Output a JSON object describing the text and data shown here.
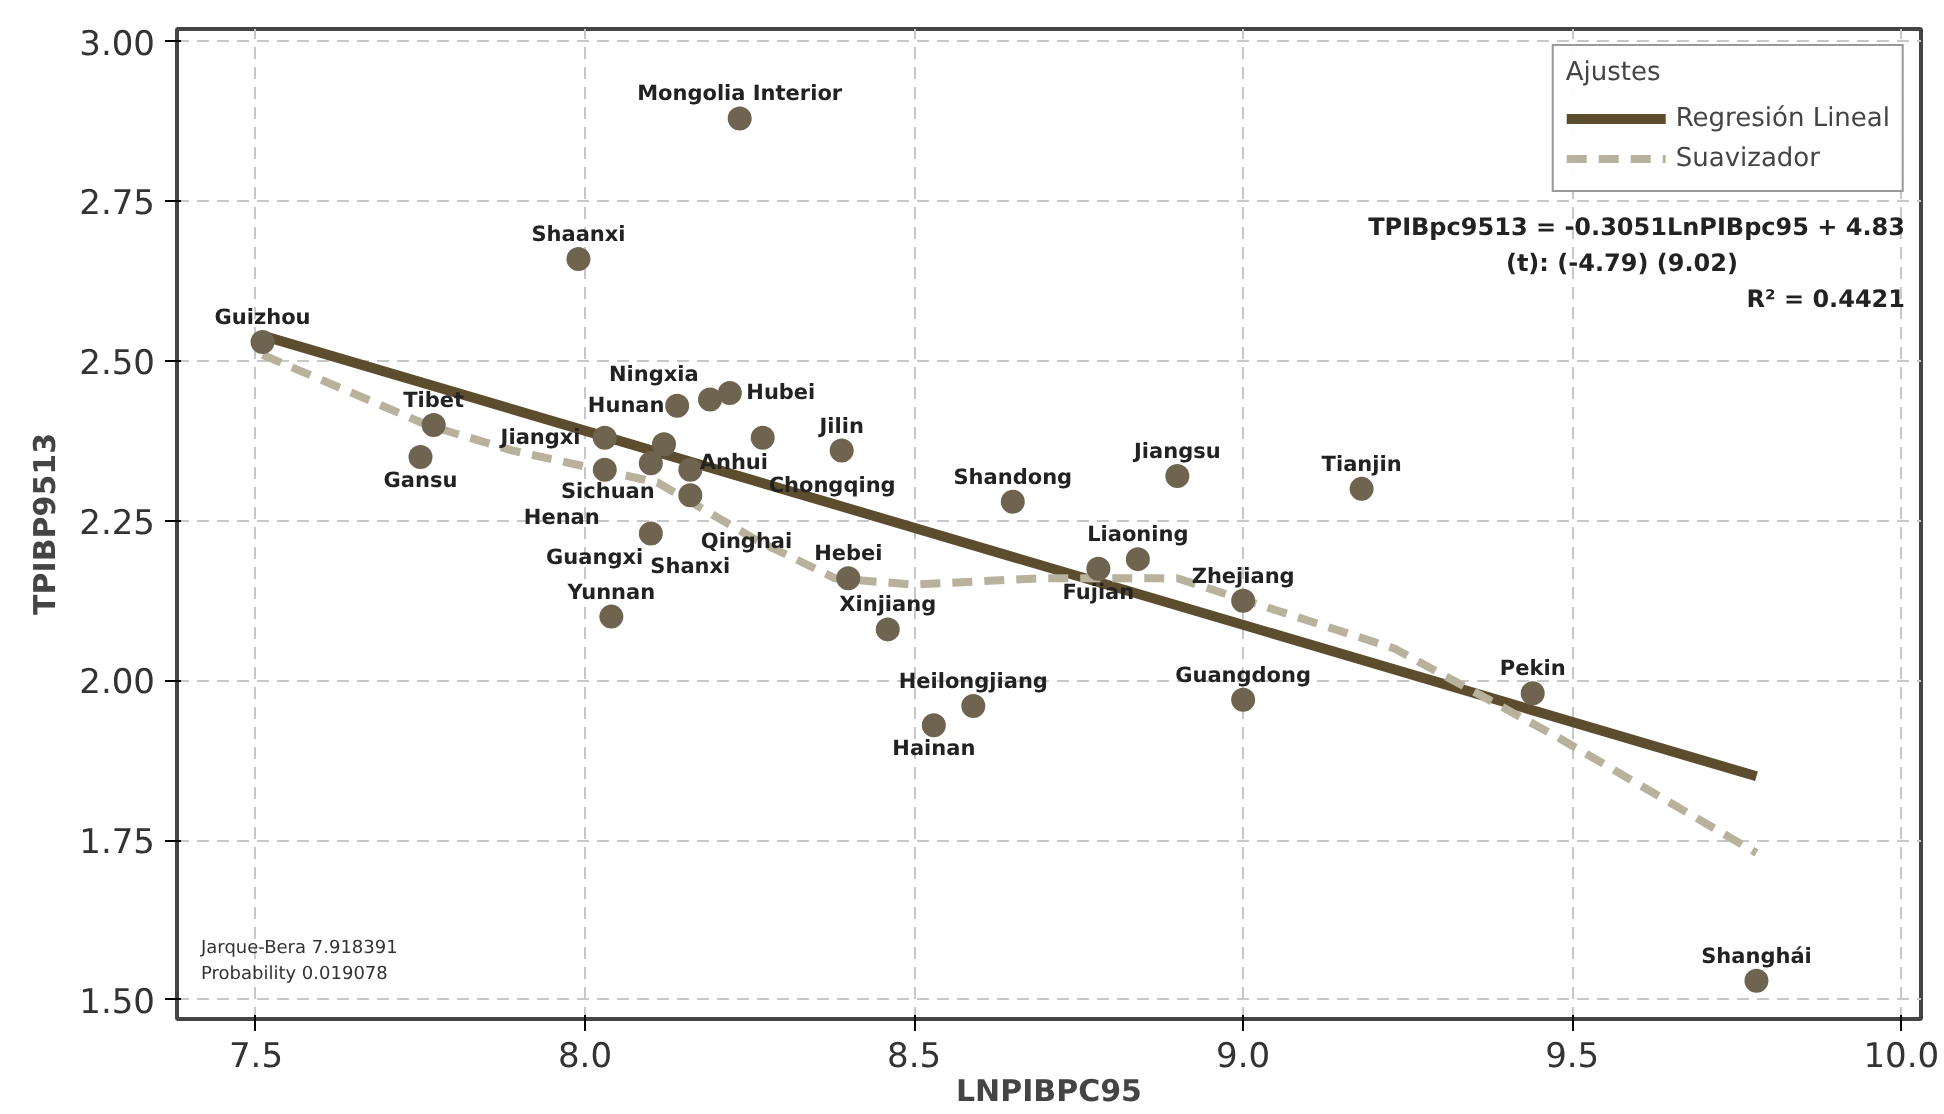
{
  "chart_data": {
    "type": "scatter",
    "xlabel": "LNPIBPC95",
    "ylabel": "TPIBP9513",
    "legend_title": "Ajustes",
    "legend": "top right",
    "grid": true,
    "xlim": [
      7.38,
      10.03
    ],
    "ylim": [
      1.47,
      3.02
    ],
    "xticks": [
      7.5,
      {
        "value": 8.0,
        "label": "8.0"
      },
      8.5,
      {
        "value": 9.0,
        "label": "9.0"
      },
      9.5,
      {
        "value": 10.0,
        "label": "10.0"
      }
    ],
    "yticks": [
      {
        "value": 1.5,
        "label": "1.50"
      },
      1.75,
      {
        "value": 2.0,
        "label": "2.00"
      },
      2.25,
      {
        "value": 2.5,
        "label": "2.50"
      },
      2.75,
      {
        "value": 3.0,
        "label": "3.00"
      }
    ],
    "series": [
      {
        "marker": "circle",
        "color": "#6e6450",
        "x": [
          7.51,
          7.77,
          7.75,
          7.99,
          8.235,
          8.19,
          8.22,
          8.14,
          8.03,
          8.12,
          8.1,
          8.03,
          8.16,
          8.27,
          8.39,
          8.16,
          8.1,
          8.04,
          8.4,
          8.46,
          8.53,
          8.59,
          8.65,
          8.9,
          9.18,
          8.84,
          8.78,
          9.0,
          9.0,
          9.44,
          9.78
        ],
        "values": [
          2.53,
          2.4,
          2.35,
          2.66,
          2.88,
          2.44,
          2.45,
          2.43,
          2.38,
          2.37,
          2.34,
          2.33,
          2.33,
          2.38,
          2.36,
          2.29,
          2.23,
          2.1,
          2.16,
          2.08,
          1.93,
          1.96,
          2.28,
          2.32,
          2.3,
          2.19,
          2.175,
          2.125,
          1.97,
          1.98,
          1.53
        ]
      },
      {
        "type": "line",
        "name": "Regresión Lineal",
        "color": "#5c4d2e",
        "line_style": "solid",
        "marker": "none",
        "x": [
          7.51,
          9.78
        ],
        "values": [
          2.54,
          1.85
        ]
      },
      {
        "type": "line",
        "name": "Suavizador",
        "color": "#b8b19c",
        "line_style": "dashed",
        "marker": "none",
        "x": [
          7.51,
          7.76,
          7.89,
          8.11,
          8.26,
          8.38,
          8.5,
          8.69,
          8.9,
          9.05,
          9.23,
          9.48,
          9.78
        ],
        "values": [
          2.51,
          2.4,
          2.36,
          2.31,
          2.22,
          2.16,
          2.15,
          2.16,
          2.16,
          2.11,
          2.05,
          1.91,
          1.73
        ]
      }
    ],
    "annotations": [
      {
        "text": "Guizhou",
        "x": 7.51,
        "y": 2.53
      },
      {
        "text": "Tibet",
        "x": 7.77,
        "y": 2.4
      },
      {
        "text": "Gansu",
        "x": 7.75,
        "y": 2.35
      },
      {
        "text": "Shaanxi",
        "x": 7.99,
        "y": 2.66
      },
      {
        "text": "Mongolia Interior",
        "x": 8.235,
        "y": 2.88
      },
      {
        "text": "Ningxia",
        "x": 8.19,
        "y": 2.44
      },
      {
        "text": "Hubei",
        "x": 8.22,
        "y": 2.45
      },
      {
        "text": "Hunan",
        "x": 8.14,
        "y": 2.43
      },
      {
        "text": "Jiangxi",
        "x": 8.03,
        "y": 2.38
      },
      {
        "text": "Sichuan",
        "x": 8.12,
        "y": 2.37
      },
      {
        "text": "Anhui",
        "x": 8.1,
        "y": 2.34
      },
      {
        "text": "Henan",
        "x": 8.03,
        "y": 2.33
      },
      {
        "text": "Qinghai",
        "x": 8.16,
        "y": 2.33
      },
      {
        "text": "Chongqing",
        "x": 8.27,
        "y": 2.38
      },
      {
        "text": "Jilin",
        "x": 8.39,
        "y": 2.36
      },
      {
        "text": "Shanxi",
        "x": 8.16,
        "y": 2.29
      },
      {
        "text": "Guangxi",
        "x": 8.1,
        "y": 2.23
      },
      {
        "text": "Yunnan",
        "x": 8.04,
        "y": 2.1
      },
      {
        "text": "Hebei",
        "x": 8.4,
        "y": 2.16
      },
      {
        "text": "Xinjiang",
        "x": 8.46,
        "y": 2.08
      },
      {
        "text": "Hainan",
        "x": 8.53,
        "y": 1.93
      },
      {
        "text": "Heilongjiang",
        "x": 8.59,
        "y": 1.96
      },
      {
        "text": "Shandong",
        "x": 8.65,
        "y": 2.28
      },
      {
        "text": "Jiangsu",
        "x": 8.9,
        "y": 2.32
      },
      {
        "text": "Tianjin",
        "x": 9.18,
        "y": 2.3
      },
      {
        "text": "Liaoning",
        "x": 8.84,
        "y": 2.19
      },
      {
        "text": "Fujian",
        "x": 8.78,
        "y": 2.175
      },
      {
        "text": "Zhejiang",
        "x": 9.0,
        "y": 2.125
      },
      {
        "text": "Guangdong",
        "x": 9.0,
        "y": 1.97
      },
      {
        "text": "Pekin",
        "x": 9.44,
        "y": 1.98
      },
      {
        "text": "Shanghái",
        "x": 9.78,
        "y": 1.53
      },
      "TPIBpc9513 = -0.3051LnPIBpc95 + 4.83",
      "(t):              (-4.79)        (9.02)",
      "R² = 0.4421",
      "Jarque-Bera      7.918391",
      "Probability      0.019078"
    ]
  }
}
